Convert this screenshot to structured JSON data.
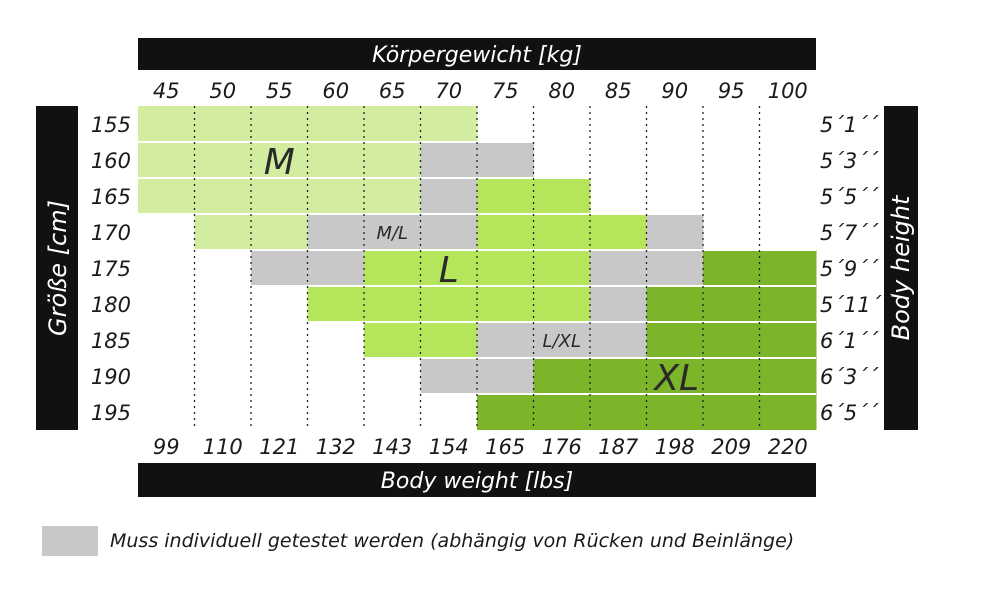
{
  "colors": {
    "M": "#d2eca0",
    "L": "#b5e55a",
    "XL": "#7db52a",
    "gray": "#c8c8c8",
    "header": "#111111"
  },
  "chart_data": {
    "type": "heatmap",
    "top_axis_title": "Körpergewicht [kg]",
    "bottom_axis_title": "Body weight [lbs]",
    "left_axis_title": "Größe [cm]",
    "right_axis_title": "Body height",
    "kg_ticks": [
      "45",
      "50",
      "55",
      "60",
      "65",
      "70",
      "75",
      "80",
      "85",
      "90",
      "95",
      "100"
    ],
    "lbs_ticks": [
      "99",
      "110",
      "121",
      "132",
      "143",
      "154",
      "165",
      "176",
      "187",
      "198",
      "209",
      "220"
    ],
    "cm_ticks": [
      "155",
      "160",
      "165",
      "170",
      "175",
      "180",
      "185",
      "190",
      "195"
    ],
    "ft_ticks": [
      "5´1´´",
      "5´3´´",
      "5´5´´",
      "5´7´´",
      "5´9´´",
      "5´11´´",
      "6´1´´",
      "6´3´´",
      "6´5´´"
    ],
    "grid": [
      [
        "M",
        "M",
        "M",
        "M",
        "M",
        "M",
        "",
        "",
        "",
        "",
        "",
        ""
      ],
      [
        "M",
        "M",
        "M",
        "M",
        "M",
        "G",
        "G",
        "",
        "",
        "",
        "",
        ""
      ],
      [
        "M",
        "M",
        "M",
        "M",
        "M",
        "G",
        "L",
        "L",
        "",
        "",
        "",
        ""
      ],
      [
        "",
        "M",
        "M",
        "G",
        "G",
        "G",
        "L",
        "L",
        "L",
        "G",
        "",
        ""
      ],
      [
        "",
        "",
        "G",
        "G",
        "L",
        "L",
        "L",
        "L",
        "G",
        "G",
        "XL",
        "XL"
      ],
      [
        "",
        "",
        "",
        "L",
        "L",
        "L",
        "L",
        "L",
        "G",
        "XL",
        "XL",
        "XL"
      ],
      [
        "",
        "",
        "",
        "",
        "L",
        "L",
        "G",
        "G",
        "G",
        "XL",
        "XL",
        "XL"
      ],
      [
        "",
        "",
        "",
        "",
        "",
        "G",
        "G",
        "XL",
        "XL",
        "XL",
        "XL",
        "XL"
      ],
      [
        "",
        "",
        "",
        "",
        "",
        "",
        "XL",
        "XL",
        "XL",
        "XL",
        "XL",
        "XL"
      ]
    ],
    "labels": [
      {
        "text": "M",
        "row": 1,
        "col": 2
      },
      {
        "text": "M/L",
        "row": 3,
        "col": 4
      },
      {
        "text": "L",
        "row": 4,
        "col": 5
      },
      {
        "text": "L/XL",
        "row": 6,
        "col": 7
      },
      {
        "text": "XL",
        "row": 7,
        "col": 9
      }
    ]
  },
  "legend": {
    "text": "Muss individuell getestet werden (abhängig von Rücken und Beinlänge)"
  }
}
